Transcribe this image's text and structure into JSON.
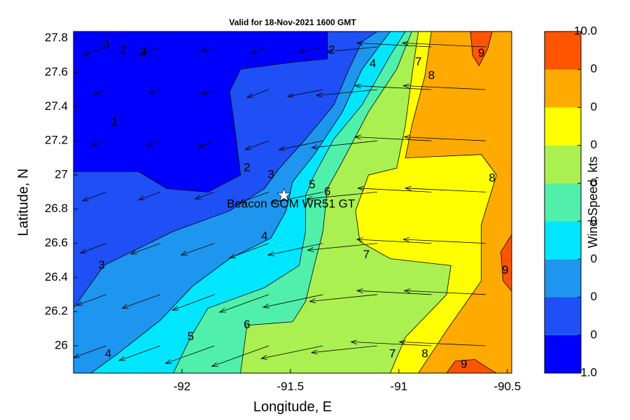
{
  "chart_data": {
    "type": "contour",
    "title": "Valid for 18-Nov-2021 1600 GMT",
    "xlabel": "Longitude, E",
    "ylabel": "Latitude, N",
    "xlim": [
      -92.5,
      -90.48
    ],
    "ylim": [
      25.84,
      27.84
    ],
    "xticks": [
      -92,
      -91.5,
      -91,
      -90.5
    ],
    "yticks": [
      26,
      26.2,
      26.4,
      26.6,
      26.8,
      27,
      27.2,
      27.4,
      27.6,
      27.8
    ],
    "colorbar": {
      "label": "Wind Speed, kts",
      "lim": [
        1,
        10
      ],
      "ticks": [
        {
          "value": 1,
          "label": "1.0"
        },
        {
          "value": 2,
          "label": "0"
        },
        {
          "value": 3,
          "label": "0"
        },
        {
          "value": 4,
          "label": "0"
        },
        {
          "value": 5,
          "label": "0"
        },
        {
          "value": 6,
          "label": "0"
        },
        {
          "value": 7,
          "label": "0"
        },
        {
          "value": 8,
          "label": "0"
        },
        {
          "value": 9,
          "label": "0"
        },
        {
          "value": 10,
          "label": "10.0"
        }
      ],
      "colors": [
        "#0000ff",
        "#1e50f5",
        "#1e96f0",
        "#00e6ff",
        "#50f0aa",
        "#aaf050",
        "#ffff00",
        "#ffaa00",
        "#ff5500"
      ]
    },
    "regions": [
      {
        "level": 1,
        "lon": [
          -92.5,
          -90.48,
          -90.48,
          -92.5
        ],
        "lat": [
          25.84,
          25.84,
          27.84,
          27.84
        ]
      },
      {
        "level": 2,
        "lon": [
          -92.5,
          -92.5,
          -92.2,
          -92.07,
          -91.88,
          -91.73,
          -91.75,
          -91.78,
          -91.73,
          -91.49,
          -91.33,
          -91.33,
          -90.48,
          -90.48
        ],
        "lat": [
          25.84,
          27.02,
          27.02,
          26.92,
          26.9,
          27.0,
          27.21,
          27.49,
          27.62,
          27.66,
          27.68,
          27.84,
          27.84,
          25.84
        ]
      },
      {
        "level": 3,
        "lon": [
          -92.5,
          -92.5,
          -92.36,
          -92.04,
          -91.78,
          -91.62,
          -91.55,
          -91.43,
          -91.3,
          -91.23,
          -91.17,
          -91.1,
          -90.48,
          -90.48
        ],
        "lat": [
          25.84,
          26.22,
          26.47,
          26.67,
          26.79,
          26.92,
          27.04,
          27.21,
          27.41,
          27.62,
          27.78,
          27.84,
          27.84,
          25.84
        ]
      },
      {
        "level": 4,
        "lon": [
          -92.42,
          -92.3,
          -92.1,
          -91.95,
          -91.78,
          -91.59,
          -91.52,
          -91.49,
          -91.39,
          -91.26,
          -91.17,
          -91.04,
          -90.48,
          -90.48
        ],
        "lat": [
          25.84,
          25.95,
          26.15,
          26.35,
          26.51,
          26.63,
          26.79,
          26.96,
          27.12,
          27.37,
          27.62,
          27.84,
          27.84,
          25.84
        ]
      },
      {
        "level": 5,
        "lon": [
          -92.04,
          -91.96,
          -91.88,
          -91.62,
          -91.46,
          -91.43,
          -91.43,
          -91.39,
          -91.3,
          -91.17,
          -91.04,
          -90.97,
          -90.48,
          -90.48
        ],
        "lat": [
          25.84,
          26.05,
          26.22,
          26.34,
          26.47,
          26.67,
          26.88,
          27.0,
          27.21,
          27.41,
          27.7,
          27.84,
          27.84,
          25.84
        ]
      },
      {
        "level": 6,
        "lon": [
          -91.73,
          -91.7,
          -91.49,
          -91.43,
          -91.39,
          -91.35,
          -91.33,
          -91.26,
          -91.14,
          -91.01,
          -90.94,
          -90.48,
          -90.48
        ],
        "lat": [
          25.84,
          26.12,
          26.14,
          26.26,
          26.47,
          26.67,
          26.92,
          27.08,
          27.37,
          27.62,
          27.84,
          27.84,
          25.84
        ]
      },
      {
        "level": 7,
        "lon": [
          -91.04,
          -90.97,
          -90.78,
          -90.76,
          -91.04,
          -91.18,
          -91.2,
          -91.14,
          -91.01,
          -90.97,
          -90.94,
          -90.91,
          -90.48,
          -90.48
        ],
        "lat": [
          25.84,
          26.05,
          26.3,
          26.47,
          26.51,
          26.61,
          26.79,
          27.0,
          27.04,
          27.29,
          27.58,
          27.84,
          27.84,
          25.84
        ]
      },
      {
        "level": 8,
        "lon": [
          -90.85,
          -90.88,
          -90.94,
          -90.97,
          -90.62,
          -90.55,
          -90.62,
          -90.62,
          -90.78,
          -90.91,
          -90.48,
          -90.48
        ],
        "lat": [
          27.84,
          27.58,
          27.29,
          27.1,
          27.12,
          27.0,
          26.71,
          26.38,
          26.09,
          25.84,
          25.84,
          27.84
        ]
      },
      {
        "level": 9,
        "lon": [
          -90.67,
          -90.66,
          -90.63,
          -90.59,
          -90.57
        ],
        "lat": [
          27.84,
          27.7,
          27.64,
          27.74,
          27.84
        ]
      },
      {
        "level": 9,
        "lon": [
          -90.48,
          -90.53,
          -90.52,
          -90.48
        ],
        "lat": [
          26.65,
          26.55,
          26.38,
          26.32
        ]
      },
      {
        "level": 9,
        "lon": [
          -90.78,
          -90.74,
          -90.65,
          -90.59,
          -90.55
        ],
        "lat": [
          25.84,
          25.91,
          25.92,
          25.87,
          25.84
        ]
      }
    ],
    "vectors": {
      "lon": [
        -92.35,
        -92.1,
        -91.85,
        -91.6,
        -91.35,
        -91.1,
        -90.85,
        -90.6
      ],
      "lat": [
        26.0,
        26.3,
        26.6,
        26.9,
        27.2,
        27.5,
        27.75
      ],
      "u": [
        [
          -3.3,
          -4.2,
          -5.0,
          -5.8,
          -6.3,
          -6.7,
          -8.2,
          -8.8
        ],
        [
          -3.0,
          -3.9,
          -4.3,
          -5.0,
          -6.1,
          -6.9,
          -7.6,
          -8.3
        ],
        [
          -2.6,
          -3.0,
          -3.4,
          -4.0,
          -5.6,
          -7.1,
          -7.6,
          -8.4
        ],
        [
          -2.4,
          -2.2,
          -2.0,
          -3.0,
          -5.3,
          -7.2,
          -7.5,
          -8.2
        ],
        [
          -1.5,
          -1.4,
          -1.6,
          -2.4,
          -4.5,
          -6.7,
          -7.8,
          -8.3
        ],
        [
          -1.3,
          -1.2,
          -1.4,
          -2.2,
          -3.6,
          -6.2,
          -7.8,
          -8.4
        ],
        [
          -2.3,
          -1.8,
          -1.4,
          -1.8,
          -2.5,
          -5.2,
          -7.6,
          -8.5
        ]
      ],
      "v": [
        [
          -1.2,
          -1.5,
          -1.8,
          -2.1,
          -1.3,
          -0.7,
          0.4,
          0.4
        ],
        [
          -1.1,
          -1.4,
          -1.6,
          -1.8,
          -1.3,
          -0.7,
          0.4,
          0.4
        ],
        [
          -1.0,
          -1.1,
          -1.2,
          -1.5,
          -1.2,
          -0.7,
          0.4,
          0.4
        ],
        [
          -0.9,
          -0.8,
          -0.7,
          -1.1,
          -1.1,
          -0.7,
          0.4,
          0.4
        ],
        [
          -0.5,
          -0.5,
          -0.6,
          -0.9,
          -0.9,
          -0.7,
          0.4,
          0.4
        ],
        [
          -0.5,
          -0.4,
          -0.5,
          -0.8,
          -0.7,
          -0.6,
          0.4,
          0.4
        ],
        [
          -0.8,
          -0.7,
          -0.5,
          -0.7,
          -0.5,
          -0.5,
          0.4,
          0.4
        ]
      ]
    },
    "contour_labels": [
      {
        "value": 3,
        "lon": -92.35,
        "lat": 27.76
      },
      {
        "value": 2,
        "lon": -92.27,
        "lat": 27.73
      },
      {
        "value": 2,
        "lon": -92.18,
        "lat": 27.72
      },
      {
        "value": 2,
        "lon": -91.31,
        "lat": 27.73
      },
      {
        "value": 4,
        "lon": -91.12,
        "lat": 27.65
      },
      {
        "value": 7,
        "lon": -90.91,
        "lat": 27.66
      },
      {
        "value": 8,
        "lon": -90.85,
        "lat": 27.58
      },
      {
        "value": 9,
        "lon": -90.62,
        "lat": 27.71
      },
      {
        "value": 1,
        "lon": -92.31,
        "lat": 27.31
      },
      {
        "value": 2,
        "lon": -91.7,
        "lat": 27.04
      },
      {
        "value": 3,
        "lon": -91.59,
        "lat": 27.0
      },
      {
        "value": 5,
        "lon": -91.4,
        "lat": 26.94
      },
      {
        "value": 6,
        "lon": -91.33,
        "lat": 26.9
      },
      {
        "value": 8,
        "lon": -90.57,
        "lat": 26.98
      },
      {
        "value": 4,
        "lon": -91.62,
        "lat": 26.64
      },
      {
        "value": 7,
        "lon": -91.15,
        "lat": 26.53
      },
      {
        "value": 9,
        "lon": -90.51,
        "lat": 26.44
      },
      {
        "value": 3,
        "lon": -92.37,
        "lat": 26.47
      },
      {
        "value": 5,
        "lon": -91.96,
        "lat": 26.05
      },
      {
        "value": 6,
        "lon": -91.7,
        "lat": 26.12
      },
      {
        "value": 4,
        "lon": -92.34,
        "lat": 25.95
      },
      {
        "value": 7,
        "lon": -91.03,
        "lat": 25.95
      },
      {
        "value": 8,
        "lon": -90.88,
        "lat": 25.95
      },
      {
        "value": 9,
        "lon": -90.7,
        "lat": 25.89
      }
    ],
    "station": {
      "name": "Beacon GOM WR51 GT",
      "lon": -91.53,
      "lat": 26.88
    }
  }
}
